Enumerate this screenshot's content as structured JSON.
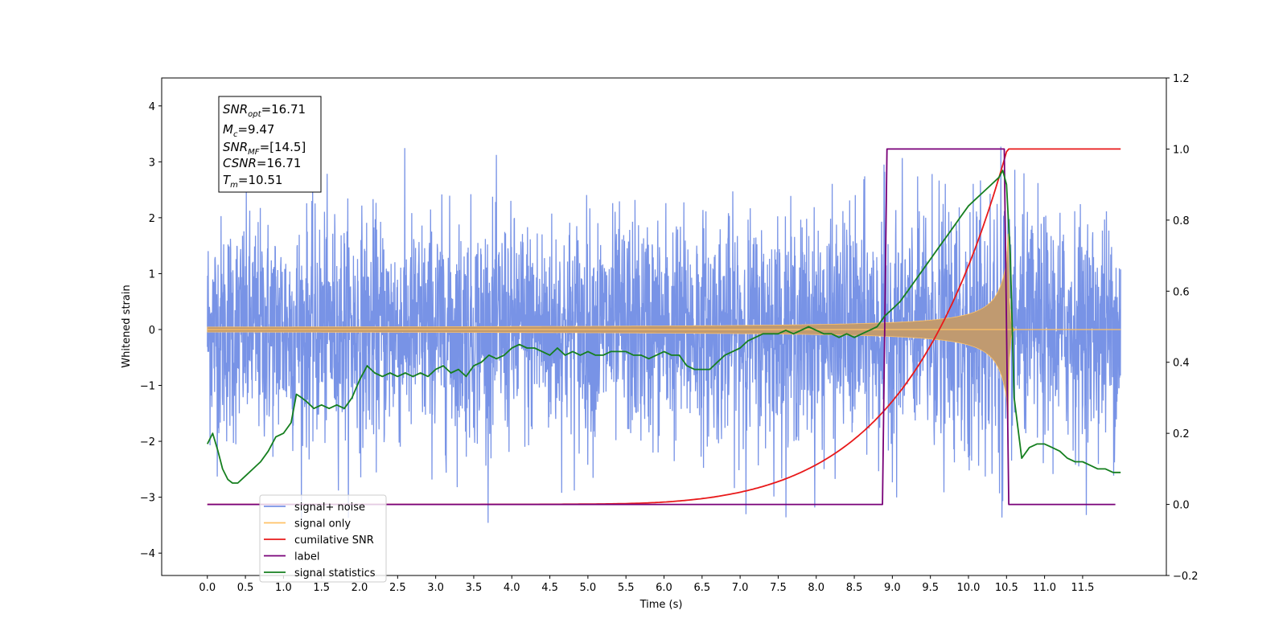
{
  "chart_data": {
    "type": "line",
    "xlabel": "Time (s)",
    "ylabel": "Whitened strain",
    "xlim": [
      -0.6,
      12.6
    ],
    "ylim": [
      -4.4,
      4.5
    ],
    "y2lim": [
      -0.2,
      1.2
    ],
    "x_ticks": [
      "0.0",
      "0.5",
      "1.0",
      "1.5",
      "2.0",
      "2.5",
      "3.0",
      "3.5",
      "4.0",
      "4.5",
      "5.0",
      "5.5",
      "6.0",
      "6.5",
      "7.0",
      "7.5",
      "8.0",
      "8.5",
      "9.0",
      "9.5",
      "10.0",
      "10.5",
      "11.0",
      "11.5"
    ],
    "y_ticks": [
      "4",
      "3",
      "2",
      "1",
      "0",
      "−1",
      "−2",
      "−3",
      "−4"
    ],
    "y2_ticks": [
      "1.2",
      "1.0",
      "0.8",
      "0.6",
      "0.4",
      "0.2",
      "0.0",
      "−0.2"
    ],
    "grid": false,
    "legend_placement": "lower-left",
    "info_box": {
      "snr_opt": "=16.71",
      "mc": "=9.47",
      "snr_mf": "=[14.5]",
      "csnr": "=16.71",
      "tm": "=10.51"
    },
    "series": [
      {
        "name": "signal+ noise",
        "color": "#7893e6",
        "axis": "left",
        "x_range": [
          0.0,
          12.0
        ],
        "amplitude_envelope": [
          -3.5,
          3.7
        ]
      },
      {
        "name": "signal only",
        "color": "#ffc266",
        "axis": "left",
        "note_merger_time": 10.51,
        "peak_amplitude": 1.3
      },
      {
        "name": "cumilative SNR",
        "color": "#e8191a",
        "axis": "right",
        "x": [
          0.0,
          5.0,
          5.5,
          6.0,
          6.5,
          7.0,
          7.5,
          8.0,
          8.5,
          9.0,
          9.5,
          10.0,
          10.5,
          10.51,
          12.0
        ],
        "values": [
          0.0,
          0.0,
          0.001,
          0.006,
          0.025,
          0.06,
          0.1,
          0.14,
          0.19,
          0.26,
          0.36,
          0.55,
          0.9,
          1.0,
          1.0
        ]
      },
      {
        "name": "label",
        "color": "#780078",
        "axis": "right",
        "x": [
          0.0,
          8.87,
          8.93,
          10.47,
          10.53,
          11.93
        ],
        "values": [
          0.0,
          0.0,
          1.0,
          1.0,
          0.0,
          0.0
        ]
      },
      {
        "name": "signal statistics",
        "color": "#157f1f",
        "axis": "right",
        "x": [
          0.0,
          0.07,
          0.14,
          0.2,
          0.27,
          0.33,
          0.4,
          0.5,
          0.6,
          0.7,
          0.8,
          0.9,
          1.0,
          1.1,
          1.17,
          1.24,
          1.3,
          1.4,
          1.5,
          1.6,
          1.7,
          1.8,
          1.9,
          2.0,
          2.1,
          2.15,
          2.2,
          2.3,
          2.4,
          2.5,
          2.6,
          2.7,
          2.8,
          2.9,
          3.0,
          3.1,
          3.2,
          3.3,
          3.4,
          3.5,
          3.6,
          3.7,
          3.8,
          3.9,
          4.0,
          4.1,
          4.2,
          4.3,
          4.4,
          4.5,
          4.6,
          4.7,
          4.8,
          4.9,
          5.0,
          5.1,
          5.2,
          5.3,
          5.4,
          5.5,
          5.6,
          5.7,
          5.8,
          5.9,
          6.0,
          6.1,
          6.2,
          6.3,
          6.4,
          6.5,
          6.6,
          6.7,
          6.8,
          6.9,
          7.0,
          7.1,
          7.2,
          7.3,
          7.4,
          7.5,
          7.6,
          7.7,
          7.8,
          7.9,
          8.0,
          8.1,
          8.2,
          8.3,
          8.4,
          8.5,
          8.6,
          8.7,
          8.8,
          8.9,
          9.0,
          9.1,
          9.2,
          9.3,
          9.4,
          9.5,
          9.6,
          9.7,
          9.8,
          9.9,
          10.0,
          10.1,
          10.2,
          10.3,
          10.4,
          10.45,
          10.5,
          10.55,
          10.6,
          10.7,
          10.8,
          10.9,
          11.0,
          11.1,
          11.2,
          11.3,
          11.4,
          11.5,
          11.6,
          11.7,
          11.8,
          11.9,
          12.0
        ],
        "values": [
          0.17,
          0.2,
          0.15,
          0.1,
          0.07,
          0.06,
          0.06,
          0.08,
          0.1,
          0.12,
          0.15,
          0.19,
          0.2,
          0.23,
          0.31,
          0.3,
          0.29,
          0.27,
          0.28,
          0.27,
          0.28,
          0.27,
          0.3,
          0.35,
          0.39,
          0.38,
          0.37,
          0.36,
          0.37,
          0.36,
          0.37,
          0.36,
          0.37,
          0.36,
          0.38,
          0.39,
          0.37,
          0.38,
          0.36,
          0.39,
          0.4,
          0.42,
          0.41,
          0.42,
          0.44,
          0.45,
          0.44,
          0.44,
          0.43,
          0.42,
          0.44,
          0.42,
          0.43,
          0.42,
          0.43,
          0.42,
          0.42,
          0.43,
          0.43,
          0.43,
          0.42,
          0.42,
          0.41,
          0.42,
          0.43,
          0.42,
          0.42,
          0.39,
          0.38,
          0.38,
          0.38,
          0.4,
          0.42,
          0.43,
          0.44,
          0.46,
          0.47,
          0.48,
          0.48,
          0.48,
          0.49,
          0.48,
          0.49,
          0.5,
          0.49,
          0.48,
          0.48,
          0.47,
          0.48,
          0.47,
          0.48,
          0.49,
          0.5,
          0.53,
          0.55,
          0.57,
          0.6,
          0.63,
          0.66,
          0.69,
          0.72,
          0.75,
          0.78,
          0.81,
          0.84,
          0.86,
          0.88,
          0.9,
          0.92,
          0.94,
          0.9,
          0.7,
          0.3,
          0.13,
          0.16,
          0.17,
          0.17,
          0.16,
          0.15,
          0.13,
          0.12,
          0.12,
          0.11,
          0.1,
          0.1,
          0.09,
          0.09
        ]
      }
    ]
  }
}
